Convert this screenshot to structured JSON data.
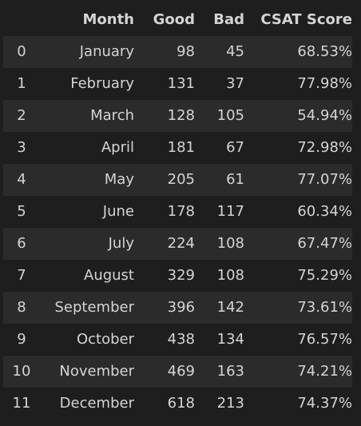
{
  "table": {
    "columns": [
      "",
      "Month",
      "Good",
      "Bad",
      "CSAT Score"
    ],
    "rows": [
      {
        "index": "0",
        "month": "January",
        "good": "98",
        "bad": "45",
        "csat": "68.53%"
      },
      {
        "index": "1",
        "month": "February",
        "good": "131",
        "bad": "37",
        "csat": "77.98%"
      },
      {
        "index": "2",
        "month": "March",
        "good": "128",
        "bad": "105",
        "csat": "54.94%"
      },
      {
        "index": "3",
        "month": "April",
        "good": "181",
        "bad": "67",
        "csat": "72.98%"
      },
      {
        "index": "4",
        "month": "May",
        "good": "205",
        "bad": "61",
        "csat": "77.07%"
      },
      {
        "index": "5",
        "month": "June",
        "good": "178",
        "bad": "117",
        "csat": "60.34%"
      },
      {
        "index": "6",
        "month": "July",
        "good": "224",
        "bad": "108",
        "csat": "67.47%"
      },
      {
        "index": "7",
        "month": "August",
        "good": "329",
        "bad": "108",
        "csat": "75.29%"
      },
      {
        "index": "8",
        "month": "September",
        "good": "396",
        "bad": "142",
        "csat": "73.61%"
      },
      {
        "index": "9",
        "month": "October",
        "good": "438",
        "bad": "134",
        "csat": "76.57%"
      },
      {
        "index": "10",
        "month": "November",
        "good": "469",
        "bad": "163",
        "csat": "74.21%"
      },
      {
        "index": "11",
        "month": "December",
        "good": "618",
        "bad": "213",
        "csat": "74.37%"
      }
    ]
  },
  "colors": {
    "background": "#1e1e1e",
    "row_stripe": "#2b2b2b",
    "text": "#d4d4d4"
  }
}
